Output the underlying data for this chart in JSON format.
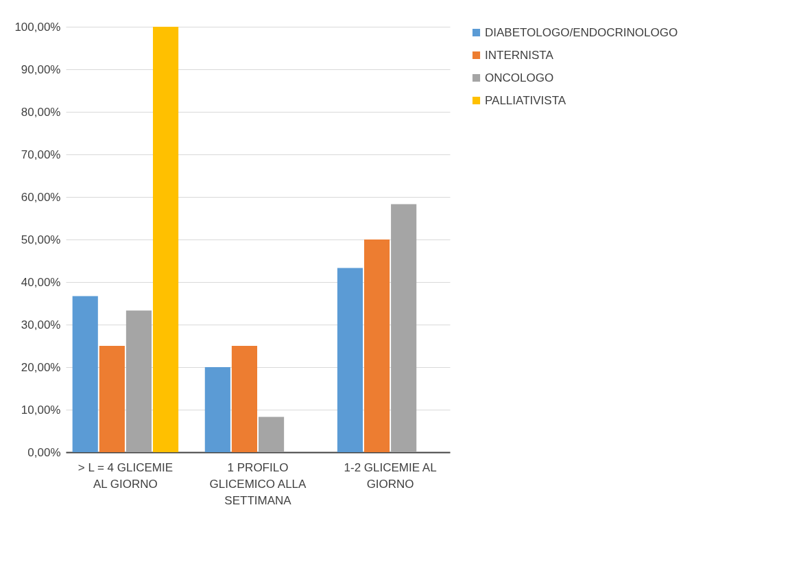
{
  "chart_data": {
    "type": "bar",
    "categories": [
      "> L = 4 GLICEMIE AL GIORNO",
      "1 PROFILO GLICEMICO ALLA SETTIMANA",
      "1-2 GLICEMIE AL GIORNO"
    ],
    "series": [
      {
        "name": "DIABETOLOGO/ENDOCRINOLOGO",
        "color": "#5b9bd5",
        "values": [
          36.7,
          20,
          43.3
        ]
      },
      {
        "name": "INTERNISTA",
        "color": "#ed7d31",
        "values": [
          25,
          25,
          50
        ]
      },
      {
        "name": "ONCOLOGO",
        "color": "#a5a5a5",
        "values": [
          33.3,
          8.3,
          58.3
        ]
      },
      {
        "name": "PALLIATIVISTA",
        "color": "#ffc000",
        "values": [
          100,
          0,
          0
        ]
      }
    ],
    "ylim": [
      0,
      100
    ],
    "yticks": [
      {
        "value": 0,
        "label": "0,00%"
      },
      {
        "value": 10,
        "label": "10,00%"
      },
      {
        "value": 20,
        "label": "20,00%"
      },
      {
        "value": 30,
        "label": "30,00%"
      },
      {
        "value": 40,
        "label": "40,00%"
      },
      {
        "value": 50,
        "label": "50,00%"
      },
      {
        "value": 60,
        "label": "60,00%"
      },
      {
        "value": 70,
        "label": "70,00%"
      },
      {
        "value": 80,
        "label": "80,00%"
      },
      {
        "value": 90,
        "label": "90,00%"
      },
      {
        "value": 100,
        "label": "100,00%"
      }
    ],
    "grid": "y",
    "legend": "right"
  }
}
